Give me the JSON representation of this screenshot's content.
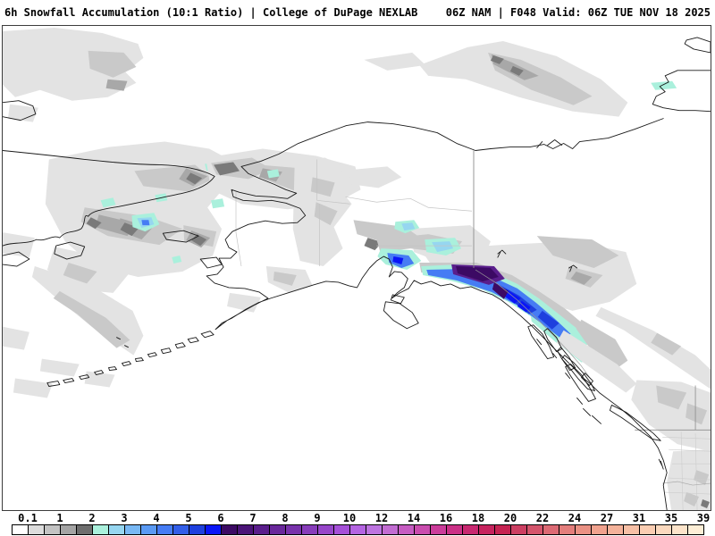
{
  "header": {
    "left_title": "6h Snowfall Accumulation (10:1 Ratio) | College of DuPage NEXLAB",
    "right_title": "06Z NAM | F048 Valid: 06Z TUE NOV 18 2025"
  },
  "legend": {
    "unit_labels": [
      "0.1",
      "1",
      "2",
      "3",
      "4",
      "5",
      "6",
      "7",
      "8",
      "9",
      "10",
      "12",
      "14",
      "16",
      "18",
      "20",
      "22",
      "24",
      "27",
      "31",
      "35",
      "39"
    ],
    "colors": [
      "#ffffff",
      "#dcdcdc",
      "#c3c3c3",
      "#a4a4a4",
      "#6e6e6e",
      "#aaf0dc",
      "#96d6f0",
      "#78b8f4",
      "#5a9af4",
      "#467cf4",
      "#325ee8",
      "#1e40de",
      "#0a16f6",
      "#3c0a64",
      "#4b1478",
      "#5a1e8c",
      "#69289b",
      "#7832ab",
      "#873cba",
      "#9646c9",
      "#a550d8",
      "#b464e2",
      "#bd74e0",
      "#c26cd2",
      "#c65cc2",
      "#c94cae",
      "#cb3c9a",
      "#ca3086",
      "#c82870",
      "#c6235e",
      "#c52352",
      "#cc3f62",
      "#d4556c",
      "#dc6a74",
      "#e37e7c",
      "#ea9184",
      "#f0a28e",
      "#f4b29a",
      "#f7c0a6",
      "#facdb2",
      "#fbd9be",
      "#fde4ca",
      "#fdeed6"
    ]
  }
}
